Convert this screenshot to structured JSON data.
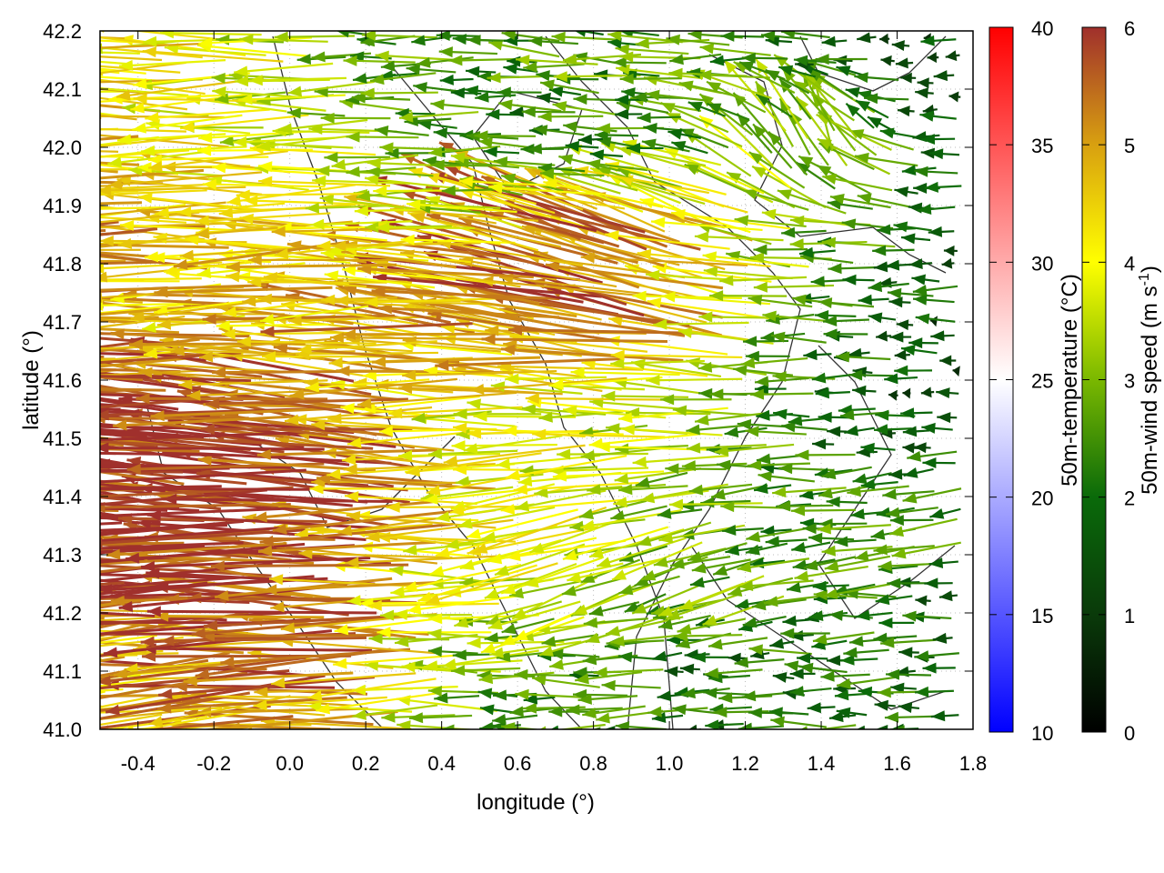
{
  "chart_data": {
    "type": "vector-field",
    "xlabel": "longitude (°)",
    "ylabel": "latitude (°)",
    "xlim": [
      -0.5,
      1.8
    ],
    "ylim": [
      41.0,
      42.2
    ],
    "xticks": [
      "-0.4",
      "-0.2",
      "0.0",
      "0.2",
      "0.4",
      "0.6",
      "0.8",
      "1.0",
      "1.2",
      "1.4",
      "1.6",
      "1.8"
    ],
    "yticks": [
      "41.0",
      "41.1",
      "41.2",
      "41.3",
      "41.4",
      "41.5",
      "41.6",
      "41.7",
      "41.8",
      "41.9",
      "42.0",
      "42.1",
      "42.2"
    ],
    "grid": true,
    "colorbars": [
      {
        "label": "50m-temperature (°C)",
        "range": [
          10,
          40
        ],
        "ticks": [
          "10",
          "15",
          "20",
          "25",
          "30",
          "35",
          "40"
        ],
        "colors": [
          "#0000ff",
          "#ffffff",
          "#ff0000"
        ]
      },
      {
        "label": "50m-wind speed (m s",
        "label_sup": "-1",
        "label_end": ")",
        "range": [
          0,
          6
        ],
        "ticks": [
          "0",
          "1",
          "2",
          "3",
          "4",
          "5",
          "6"
        ],
        "colors": [
          "#000000",
          "#0a3a0a",
          "#0a6a0a",
          "#7ab800",
          "#ffff00",
          "#d8a010",
          "#a0302c"
        ]
      }
    ],
    "field_sample": {
      "note_units": "speed in m/s, direction in degrees (180 = toward west, 90 = toward north)",
      "lon": [
        -0.4,
        -0.1,
        0.2,
        0.5,
        0.8,
        1.1,
        1.4,
        1.7
      ],
      "lat": [
        42.15,
        42.0,
        41.85,
        41.7,
        41.55,
        41.4,
        41.25,
        41.1
      ],
      "speed": [
        [
          4.5,
          4,
          3,
          2.5,
          2.5,
          3,
          2,
          1.5
        ],
        [
          4.5,
          4,
          3.5,
          2.5,
          2,
          2.5,
          3.5,
          2
        ],
        [
          5,
          4.5,
          4.5,
          4,
          5.5,
          5,
          3,
          2
        ],
        [
          5,
          4.5,
          4.5,
          5,
          5.5,
          5,
          2.5,
          1.5
        ],
        [
          6,
          6,
          5.5,
          4,
          4,
          3.5,
          2,
          1.5
        ],
        [
          6,
          6,
          6,
          4.5,
          4,
          3,
          2.5,
          2.5
        ],
        [
          6,
          6,
          6,
          4,
          3.5,
          3,
          2.5,
          2
        ],
        [
          4,
          5,
          5.5,
          3,
          2.5,
          2,
          2,
          2
        ]
      ],
      "direction": [
        [
          180,
          180,
          180,
          180,
          175,
          180,
          180,
          180
        ],
        [
          180,
          180,
          180,
          180,
          180,
          170,
          100,
          180
        ],
        [
          180,
          180,
          180,
          175,
          160,
          160,
          180,
          180
        ],
        [
          180,
          180,
          180,
          175,
          170,
          170,
          180,
          180
        ],
        [
          178,
          178,
          175,
          180,
          180,
          180,
          180,
          180
        ],
        [
          175,
          178,
          175,
          180,
          190,
          190,
          180,
          190
        ],
        [
          185,
          178,
          178,
          180,
          200,
          200,
          190,
          180
        ],
        [
          190,
          185,
          182,
          180,
          180,
          180,
          180,
          180
        ]
      ]
    }
  }
}
